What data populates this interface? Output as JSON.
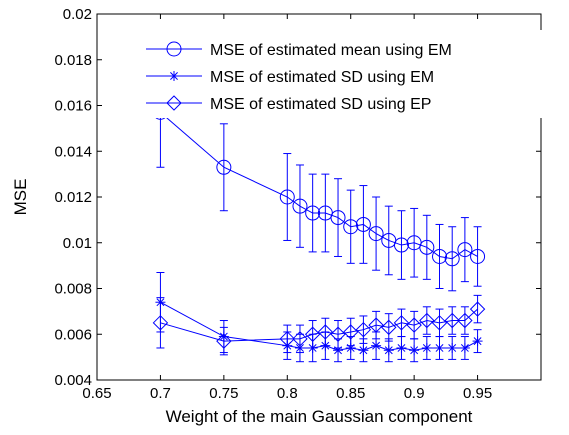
{
  "chart_data": {
    "type": "line",
    "xlabel": "Weight of the main Gaussian component",
    "ylabel": "MSE",
    "xlim": [
      0.65,
      1.0
    ],
    "ylim": [
      0.004,
      0.02
    ],
    "xticks": [
      0.65,
      0.7,
      0.75,
      0.8,
      0.85,
      0.9,
      0.95
    ],
    "xtick_labels": [
      "0.65",
      "0.7",
      "0.75",
      "0.8",
      "0.85",
      "0.9",
      "0.95"
    ],
    "yticks": [
      0.004,
      0.006,
      0.008,
      0.01,
      0.012,
      0.014,
      0.016,
      0.018,
      0.02
    ],
    "ytick_labels": [
      "0.004",
      "0.006",
      "0.008",
      "0.01",
      "0.012",
      "0.014",
      "0.016",
      "0.018",
      "0.02"
    ],
    "grid": false,
    "legend_position": "top-right",
    "series_color": "#0000ff",
    "x": [
      0.7,
      0.75,
      0.8,
      0.81,
      0.82,
      0.83,
      0.84,
      0.85,
      0.86,
      0.87,
      0.88,
      0.89,
      0.9,
      0.91,
      0.92,
      0.93,
      0.94,
      0.95
    ],
    "series": [
      {
        "name": "MSE of estimated mean using EM",
        "marker": "circle",
        "values": [
          0.0157,
          0.0133,
          0.012,
          0.0116,
          0.0113,
          0.0113,
          0.0111,
          0.0107,
          0.0108,
          0.0104,
          0.0101,
          0.0099,
          0.01,
          0.0098,
          0.0094,
          0.0093,
          0.0097,
          0.0094
        ],
        "error": [
          0.0024,
          0.0019,
          0.0019,
          0.0018,
          0.0017,
          0.0017,
          0.0017,
          0.0016,
          0.0017,
          0.0016,
          0.0015,
          0.0015,
          0.0015,
          0.0014,
          0.0014,
          0.0014,
          0.0014,
          0.0013
        ]
      },
      {
        "name": "MSE of estimated SD using EM",
        "marker": "star",
        "values": [
          0.0074,
          0.0059,
          0.0055,
          0.0054,
          0.0054,
          0.0055,
          0.0053,
          0.0054,
          0.0053,
          0.0055,
          0.0053,
          0.0054,
          0.0053,
          0.0054,
          0.0054,
          0.0054,
          0.0054,
          0.0057
        ],
        "error": [
          0.0013,
          0.0007,
          0.0006,
          0.0006,
          0.0006,
          0.0006,
          0.0005,
          0.0005,
          0.0005,
          0.0006,
          0.0005,
          0.0005,
          0.0005,
          0.0005,
          0.0005,
          0.0005,
          0.0005,
          0.0005
        ]
      },
      {
        "name": "MSE of estimated SD using EP",
        "marker": "diamond",
        "values": [
          0.0065,
          0.0057,
          0.0058,
          0.0058,
          0.006,
          0.0061,
          0.006,
          0.0061,
          0.0062,
          0.0064,
          0.0063,
          0.0065,
          0.0064,
          0.0066,
          0.0065,
          0.0066,
          0.0066,
          0.0071
        ],
        "error": [
          0.0011,
          0.0006,
          0.0006,
          0.0006,
          0.0006,
          0.0006,
          0.0006,
          0.0006,
          0.0006,
          0.0006,
          0.0006,
          0.0006,
          0.0006,
          0.0006,
          0.0006,
          0.0006,
          0.0006,
          0.0006
        ]
      }
    ]
  }
}
